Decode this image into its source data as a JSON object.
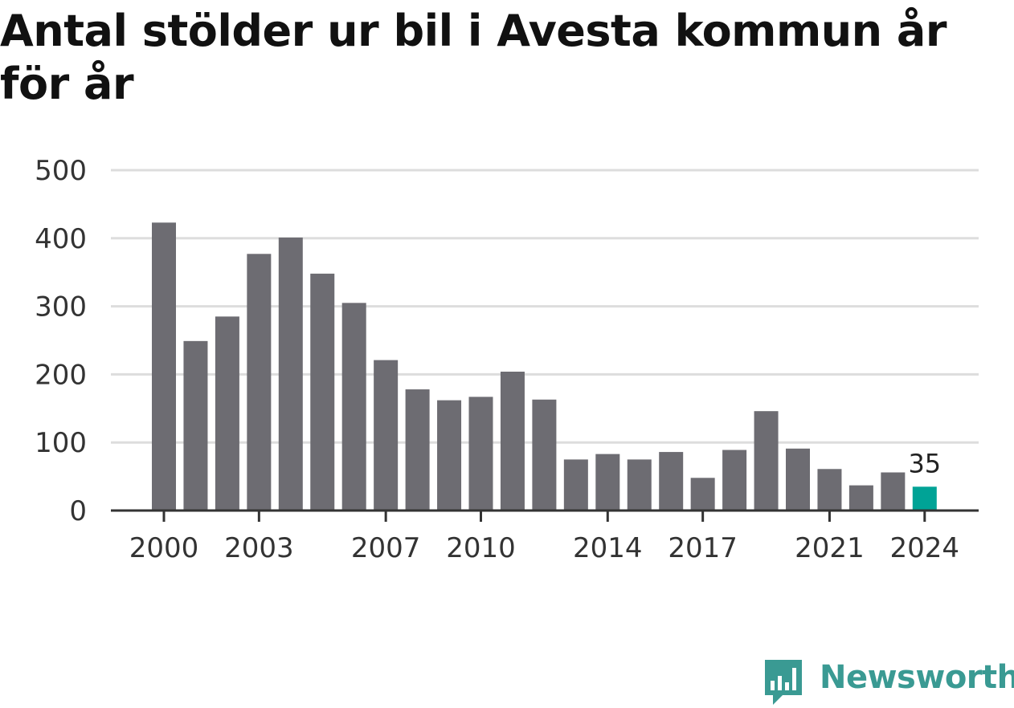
{
  "title": "Antal stölder ur bil i Avesta kommun år för år",
  "brand": {
    "name": "Newsworthy",
    "icon": "newsworthy-logo-icon"
  },
  "colors": {
    "bar": "#6d6c72",
    "highlight": "#00a396",
    "grid": "#dddddd",
    "axis": "#333333",
    "brand": "#3a9a93"
  },
  "chart_data": {
    "type": "bar",
    "title": "Antal stölder ur bil i Avesta kommun år för år",
    "xlabel": "",
    "ylabel": "",
    "ylim": [
      0,
      500
    ],
    "grid": true,
    "yticks": [
      0,
      100,
      200,
      300,
      400,
      500
    ],
    "xtick_labels": [
      "2000",
      "2003",
      "2007",
      "2010",
      "2014",
      "2017",
      "2021",
      "2024"
    ],
    "categories": [
      "2000",
      "2001",
      "2002",
      "2003",
      "2004",
      "2005",
      "2006",
      "2007",
      "2008",
      "2009",
      "2010",
      "2011",
      "2012",
      "2013",
      "2014",
      "2015",
      "2016",
      "2017",
      "2018",
      "2019",
      "2020",
      "2021",
      "2022",
      "2023",
      "2024"
    ],
    "values": [
      423,
      249,
      285,
      377,
      401,
      348,
      305,
      221,
      178,
      162,
      167,
      204,
      163,
      75,
      83,
      75,
      86,
      48,
      89,
      146,
      91,
      61,
      37,
      56,
      35
    ],
    "highlight": {
      "category": "2024",
      "value": 35,
      "label": "35"
    }
  }
}
